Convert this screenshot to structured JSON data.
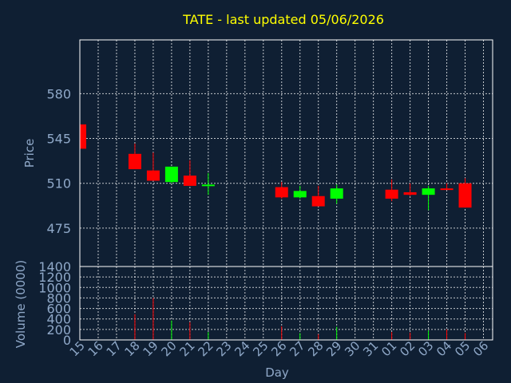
{
  "chart_data": {
    "type": "candlestick",
    "title": "TATE - last updated 05/06/2026",
    "xlabel": "Day",
    "colors": {
      "background": "#0f1f33",
      "title": "#ffff00",
      "axis_text": "#8fa8c8",
      "grid": "#ffffff",
      "up": "#00ff00",
      "down": "#ff0000"
    },
    "price_panel": {
      "ylabel": "Price",
      "ylim": [
        445,
        622
      ],
      "yticks": [
        475,
        510,
        545,
        580
      ],
      "grid": true
    },
    "volume_panel": {
      "ylabel": "Volume (0000)",
      "ylim": [
        0,
        1400
      ],
      "yticks": [
        0,
        200,
        400,
        600,
        800,
        1000,
        1200,
        1400
      ],
      "grid": true
    },
    "x_ticks": [
      "15",
      "16",
      "17",
      "18",
      "19",
      "20",
      "21",
      "22",
      "23",
      "24",
      "25",
      "26",
      "27",
      "28",
      "29",
      "30",
      "31",
      "01",
      "02",
      "03",
      "04",
      "05",
      "06"
    ],
    "candles": [
      {
        "day": "15",
        "open": 556,
        "high": 556,
        "low": 536,
        "close": 537,
        "volume": 0
      },
      {
        "day": "18",
        "open": 533,
        "high": 541,
        "low": 521,
        "close": 521,
        "volume": 490
      },
      {
        "day": "19",
        "open": 520,
        "high": 534,
        "low": 512,
        "close": 512,
        "volume": 800
      },
      {
        "day": "20",
        "open": 511,
        "high": 523,
        "low": 510,
        "close": 523,
        "volume": 370
      },
      {
        "day": "21",
        "open": 516,
        "high": 528,
        "low": 508,
        "close": 508,
        "volume": 340
      },
      {
        "day": "22",
        "open": 508,
        "high": 518,
        "low": 501,
        "close": 509,
        "volume": 150
      },
      {
        "day": "26",
        "open": 507,
        "high": 511,
        "low": 498,
        "close": 499,
        "volume": 260
      },
      {
        "day": "27",
        "open": 499,
        "high": 508,
        "low": 498,
        "close": 504,
        "volume": 130
      },
      {
        "day": "28",
        "open": 500,
        "high": 508,
        "low": 492,
        "close": 492,
        "volume": 110
      },
      {
        "day": "29",
        "open": 498,
        "high": 509,
        "low": 494,
        "close": 506,
        "volume": 250
      },
      {
        "day": "01",
        "open": 505,
        "high": 513,
        "low": 496,
        "close": 498,
        "volume": 150
      },
      {
        "day": "02",
        "open": 503,
        "high": 510,
        "low": 500,
        "close": 501,
        "volume": 140
      },
      {
        "day": "03",
        "open": 501,
        "high": 508,
        "low": 489,
        "close": 506,
        "volume": 180
      },
      {
        "day": "04",
        "open": 506,
        "high": 510,
        "low": 505,
        "close": 505,
        "volume": 200
      },
      {
        "day": "05",
        "open": 510,
        "high": 514,
        "low": 491,
        "close": 491,
        "volume": 130
      }
    ]
  }
}
